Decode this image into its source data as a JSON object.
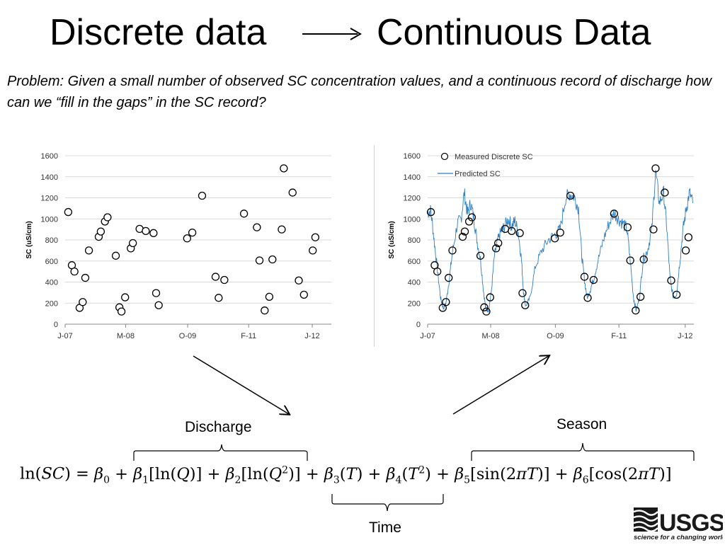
{
  "title": {
    "left": "Discrete data",
    "right": "Continuous Data"
  },
  "problem_text": "Problem: Given a small number of observed SC concentration values, and a continuous record of discharge how can we “fill in the gaps” in the SC record?",
  "labels": {
    "discharge": "Discharge",
    "season": "Season",
    "time": "Time"
  },
  "equation": {
    "lhs": "ln(SC) =",
    "terms": [
      "β0",
      "+ β1[ln(Q)]",
      "+ β2[ln(Q²)]",
      "+ β3(T)",
      "+ β4(T²)",
      "+ β5[sin(2πT)]",
      "+ β6[cos(2πT)]"
    ]
  },
  "logo": {
    "text": "USGS",
    "tagline": "science for a changing world",
    "color": "#1a1a1a"
  },
  "chart_data": [
    {
      "type": "scatter",
      "ylabel": "SC (uS/cm)",
      "xlabel": "",
      "ylim": [
        0,
        1600
      ],
      "yticks": [
        0,
        200,
        400,
        600,
        800,
        1000,
        1200,
        1400,
        1600
      ],
      "xticks": [
        {
          "label": "J-07",
          "x": 2007.5
        },
        {
          "label": "M-08",
          "x": 2008.67
        },
        {
          "label": "O-09",
          "x": 2009.87
        },
        {
          "label": "F-11",
          "x": 2011.05
        },
        {
          "label": "J-12",
          "x": 2012.28
        }
      ],
      "xlim": [
        2007.5,
        2012.65
      ],
      "series": [
        {
          "name": "",
          "points": [
            [
              2007.56,
              1065
            ],
            [
              2007.63,
              560
            ],
            [
              2007.68,
              500
            ],
            [
              2007.78,
              155
            ],
            [
              2007.84,
              210
            ],
            [
              2007.89,
              440
            ],
            [
              2007.96,
              700
            ],
            [
              2008.15,
              830
            ],
            [
              2008.19,
              880
            ],
            [
              2008.27,
              975
            ],
            [
              2008.32,
              1015
            ],
            [
              2008.48,
              650
            ],
            [
              2008.55,
              160
            ],
            [
              2008.59,
              120
            ],
            [
              2008.66,
              255
            ],
            [
              2008.77,
              720
            ],
            [
              2008.81,
              770
            ],
            [
              2008.94,
              905
            ],
            [
              2009.06,
              885
            ],
            [
              2009.21,
              865
            ],
            [
              2009.26,
              295
            ],
            [
              2009.31,
              180
            ],
            [
              2009.86,
              815
            ],
            [
              2009.96,
              870
            ],
            [
              2010.15,
              1220
            ],
            [
              2010.41,
              450
            ],
            [
              2010.47,
              250
            ],
            [
              2010.58,
              420
            ],
            [
              2010.96,
              1050
            ],
            [
              2011.21,
              920
            ],
            [
              2011.26,
              605
            ],
            [
              2011.36,
              130
            ],
            [
              2011.45,
              260
            ],
            [
              2011.51,
              615
            ],
            [
              2011.69,
              900
            ],
            [
              2011.73,
              1480
            ],
            [
              2011.9,
              1250
            ],
            [
              2012.02,
              415
            ],
            [
              2012.12,
              280
            ],
            [
              2012.29,
              700
            ],
            [
              2012.34,
              825
            ]
          ]
        }
      ]
    },
    {
      "type": "line",
      "ylabel": "SC (uS/cm)",
      "xlabel": "",
      "ylim": [
        0,
        1600
      ],
      "yticks": [
        0,
        200,
        400,
        600,
        800,
        1000,
        1200,
        1400,
        1600
      ],
      "xticks": [
        {
          "label": "J-07",
          "x": 2007.5
        },
        {
          "label": "M-08",
          "x": 2008.67
        },
        {
          "label": "O-09",
          "x": 2009.87
        },
        {
          "label": "F-11",
          "x": 2011.05
        },
        {
          "label": "J-12",
          "x": 2012.28
        }
      ],
      "xlim": [
        2007.5,
        2012.44
      ],
      "legend": "top-left",
      "series": [
        {
          "name": "Measured Discrete SC",
          "kind": "points"
        },
        {
          "name": "Predicted SC",
          "kind": "line",
          "color": "#2e7fc1"
        }
      ],
      "predicted_anchors": [
        [
          2007.5,
          1060
        ],
        [
          2007.56,
          1080
        ],
        [
          2007.62,
          800
        ],
        [
          2007.68,
          520
        ],
        [
          2007.74,
          250
        ],
        [
          2007.79,
          150
        ],
        [
          2007.84,
          200
        ],
        [
          2007.9,
          420
        ],
        [
          2007.96,
          680
        ],
        [
          2008.05,
          950
        ],
        [
          2008.12,
          1000
        ],
        [
          2008.18,
          1250
        ],
        [
          2008.24,
          1050
        ],
        [
          2008.3,
          1150
        ],
        [
          2008.36,
          1000
        ],
        [
          2008.42,
          780
        ],
        [
          2008.48,
          620
        ],
        [
          2008.54,
          300
        ],
        [
          2008.58,
          140
        ],
        [
          2008.63,
          130
        ],
        [
          2008.68,
          300
        ],
        [
          2008.74,
          650
        ],
        [
          2008.8,
          790
        ],
        [
          2008.86,
          880
        ],
        [
          2008.92,
          920
        ],
        [
          2009.0,
          1000
        ],
        [
          2009.06,
          930
        ],
        [
          2009.12,
          980
        ],
        [
          2009.18,
          880
        ],
        [
          2009.24,
          620
        ],
        [
          2009.28,
          300
        ],
        [
          2009.32,
          170
        ],
        [
          2009.4,
          250
        ],
        [
          2009.5,
          550
        ],
        [
          2009.62,
          700
        ],
        [
          2009.74,
          800
        ],
        [
          2009.86,
          850
        ],
        [
          2009.96,
          900
        ],
        [
          2010.06,
          1200
        ],
        [
          2010.14,
          1240
        ],
        [
          2010.22,
          1210
        ],
        [
          2010.3,
          1100
        ],
        [
          2010.36,
          650
        ],
        [
          2010.41,
          420
        ],
        [
          2010.46,
          250
        ],
        [
          2010.52,
          330
        ],
        [
          2010.58,
          430
        ],
        [
          2010.66,
          600
        ],
        [
          2010.76,
          800
        ],
        [
          2010.86,
          950
        ],
        [
          2010.96,
          1060
        ],
        [
          2011.04,
          1000
        ],
        [
          2011.12,
          960
        ],
        [
          2011.2,
          900
        ],
        [
          2011.26,
          600
        ],
        [
          2011.32,
          250
        ],
        [
          2011.37,
          130
        ],
        [
          2011.43,
          250
        ],
        [
          2011.5,
          620
        ],
        [
          2011.58,
          700
        ],
        [
          2011.66,
          900
        ],
        [
          2011.73,
          1460
        ],
        [
          2011.8,
          1150
        ],
        [
          2011.88,
          1250
        ],
        [
          2011.94,
          900
        ],
        [
          2012.0,
          420
        ],
        [
          2012.06,
          250
        ],
        [
          2012.12,
          290
        ],
        [
          2012.18,
          600
        ],
        [
          2012.24,
          900
        ],
        [
          2012.3,
          1100
        ],
        [
          2012.36,
          1250
        ],
        [
          2012.42,
          1150
        ]
      ]
    }
  ]
}
